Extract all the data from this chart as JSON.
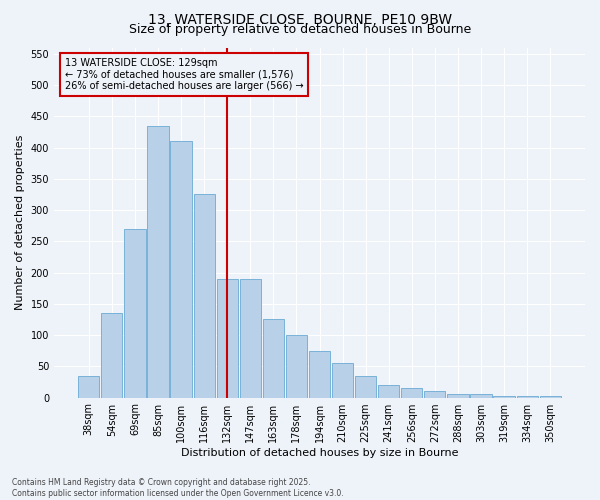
{
  "title_line1": "13, WATERSIDE CLOSE, BOURNE, PE10 9BW",
  "title_line2": "Size of property relative to detached houses in Bourne",
  "xlabel": "Distribution of detached houses by size in Bourne",
  "ylabel": "Number of detached properties",
  "categories": [
    "38sqm",
    "54sqm",
    "69sqm",
    "85sqm",
    "100sqm",
    "116sqm",
    "132sqm",
    "147sqm",
    "163sqm",
    "178sqm",
    "194sqm",
    "210sqm",
    "225sqm",
    "241sqm",
    "256sqm",
    "272sqm",
    "288sqm",
    "303sqm",
    "319sqm",
    "334sqm",
    "350sqm"
  ],
  "values": [
    35,
    135,
    270,
    435,
    410,
    325,
    190,
    190,
    125,
    100,
    75,
    55,
    35,
    20,
    15,
    10,
    5,
    5,
    3,
    3,
    3
  ],
  "bar_color": "#b8d0e8",
  "bar_edge_color": "#6aaad4",
  "vline_index": 6,
  "vline_color": "#cc0000",
  "annotation_text": "13 WATERSIDE CLOSE: 129sqm\n← 73% of detached houses are smaller (1,576)\n26% of semi-detached houses are larger (566) →",
  "annotation_box_edgecolor": "#cc0000",
  "ylim": [
    0,
    560
  ],
  "yticks": [
    0,
    50,
    100,
    150,
    200,
    250,
    300,
    350,
    400,
    450,
    500,
    550
  ],
  "background_color": "#eef2f9",
  "grid_color": "#ffffff",
  "footer_text": "Contains HM Land Registry data © Crown copyright and database right 2025.\nContains public sector information licensed under the Open Government Licence v3.0.",
  "title_fontsize": 10,
  "subtitle_fontsize": 9,
  "axis_label_fontsize": 8,
  "tick_fontsize": 7,
  "annotation_fontsize": 7
}
